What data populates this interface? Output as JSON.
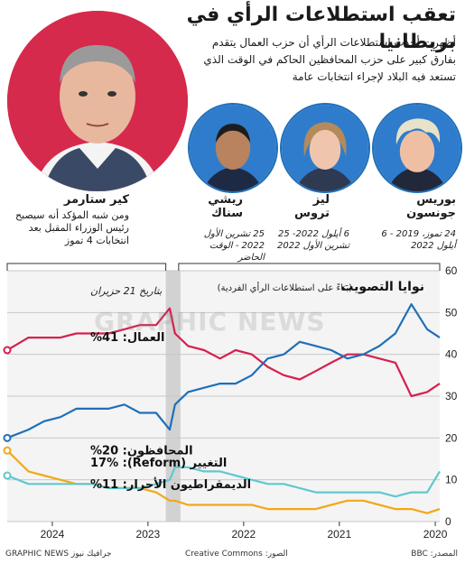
{
  "header": {
    "title": "تعقب استطلاعات الرأي في بريطانيا",
    "intro": "أظهرت أحدث استطلاعات الرأي أن حزب العمال يتقدم بفارق كبير على حزب المحافظين الحاكم في الوقت الذي تستعد فيه البلاد لإجراء انتخابات عامة"
  },
  "leaders": {
    "starmer": {
      "name": "كير ستارمر",
      "note": "ومن شبه المؤكد أنه سيصبح رئيس الوزراء المقبل بعد انتخابات 4 تموز"
    },
    "sunak": {
      "name": "ريشي سناك",
      "term": "25 تشرين الأول 2022 - الوقت الحاضر"
    },
    "truss": {
      "name": "ليز تروس",
      "term": "6 أيلول 2022- 25 تشرين الأول 2022"
    },
    "johnson": {
      "name": "بوريس جونسون",
      "term": "24 تموز، 2019 - 6 أيلول 2022"
    }
  },
  "chart_data": {
    "type": "line",
    "title": "نوايا التصويت",
    "subtitle": "(بناءً على استطلاعات الرأي الفردية)",
    "date_note": "بتاريخ 21 حزيران",
    "ylim": [
      0,
      60
    ],
    "y_ticks": [
      0,
      10,
      20,
      30,
      40,
      50,
      60
    ],
    "x_ticks": [
      "2020",
      "2021",
      "2022",
      "2023",
      "2024"
    ],
    "x_direction": "right-to-left",
    "xlim": [
      "2019-12-15",
      "2024-06-21"
    ],
    "grid": true,
    "series": [
      {
        "name": "العمال",
        "label": "العمال: 41%",
        "color": "#d6204f",
        "x": [
          "2019-12-15",
          "2020-02-01",
          "2020-04-01",
          "2020-06-01",
          "2020-08-01",
          "2020-10-01",
          "2020-12-01",
          "2021-02-01",
          "2021-04-01",
          "2021-06-01",
          "2021-08-01",
          "2021-10-01",
          "2021-12-01",
          "2022-02-01",
          "2022-04-01",
          "2022-06-01",
          "2022-08-01",
          "2022-09-20",
          "2022-10-10",
          "2022-12-01",
          "2023-02-01",
          "2023-04-01",
          "2023-06-01",
          "2023-08-01",
          "2023-10-01",
          "2023-12-01",
          "2024-02-01",
          "2024-04-01",
          "2024-06-21"
        ],
        "values": [
          33,
          31,
          30,
          38,
          39,
          40,
          40,
          38,
          36,
          34,
          35,
          37,
          40,
          41,
          39,
          41,
          42,
          45,
          51,
          47,
          47,
          46,
          45,
          45,
          45,
          44,
          44,
          44,
          41
        ]
      },
      {
        "name": "المحافظون",
        "label": "المحافظون: 20%",
        "color": "#1f6fb8",
        "x": [
          "2019-12-15",
          "2020-02-01",
          "2020-04-01",
          "2020-06-01",
          "2020-08-01",
          "2020-10-01",
          "2020-12-01",
          "2021-02-01",
          "2021-04-01",
          "2021-06-01",
          "2021-08-01",
          "2021-10-01",
          "2021-12-01",
          "2022-02-01",
          "2022-04-01",
          "2022-06-01",
          "2022-08-01",
          "2022-09-20",
          "2022-10-10",
          "2022-12-01",
          "2023-02-01",
          "2023-04-01",
          "2023-06-01",
          "2023-08-01",
          "2023-10-01",
          "2023-12-01",
          "2024-02-01",
          "2024-04-01",
          "2024-06-21"
        ],
        "values": [
          44,
          46,
          52,
          45,
          42,
          40,
          39,
          41,
          42,
          43,
          40,
          39,
          35,
          33,
          33,
          32,
          31,
          28,
          22,
          26,
          26,
          28,
          27,
          27,
          27,
          25,
          24,
          22,
          20
        ]
      },
      {
        "name": "التغيير (Reform)",
        "label": "التغيير (Reform): 17%",
        "color": "#f2a818",
        "x": [
          "2019-12-15",
          "2020-02-01",
          "2020-04-01",
          "2020-06-01",
          "2020-08-01",
          "2020-10-01",
          "2020-12-01",
          "2021-02-01",
          "2021-04-01",
          "2021-06-01",
          "2021-08-01",
          "2021-10-01",
          "2021-12-01",
          "2022-02-01",
          "2022-04-01",
          "2022-06-01",
          "2022-08-01",
          "2022-09-20",
          "2022-10-10",
          "2022-12-01",
          "2023-02-01",
          "2023-04-01",
          "2023-06-01",
          "2023-08-01",
          "2023-10-01",
          "2023-12-01",
          "2024-02-01",
          "2024-04-01",
          "2024-06-21"
        ],
        "values": [
          3,
          2,
          3,
          3,
          4,
          5,
          5,
          4,
          3,
          3,
          3,
          3,
          4,
          4,
          4,
          4,
          4,
          5,
          5,
          7,
          8,
          8,
          8,
          9,
          9,
          10,
          11,
          12,
          17
        ]
      },
      {
        "name": "الديمقراطيون الأحرار",
        "label": "الديمقراطيون الأحرار: 11%",
        "color": "#5fc8d0",
        "x": [
          "2019-12-15",
          "2020-02-01",
          "2020-04-01",
          "2020-06-01",
          "2020-08-01",
          "2020-10-01",
          "2020-12-01",
          "2021-02-01",
          "2021-04-01",
          "2021-06-01",
          "2021-08-01",
          "2021-10-01",
          "2021-12-01",
          "2022-02-01",
          "2022-04-01",
          "2022-06-01",
          "2022-08-01",
          "2022-09-20",
          "2022-10-10",
          "2022-12-01",
          "2023-02-01",
          "2023-04-01",
          "2023-06-01",
          "2023-08-01",
          "2023-10-01",
          "2023-12-01",
          "2024-02-01",
          "2024-04-01",
          "2024-06-21"
        ],
        "values": [
          12,
          7,
          7,
          6,
          7,
          7,
          7,
          7,
          7,
          8,
          9,
          9,
          10,
          11,
          12,
          12,
          13,
          13,
          10,
          9,
          8,
          8,
          8,
          9,
          9,
          9,
          9,
          9,
          11
        ]
      }
    ]
  },
  "footer": {
    "source": "المصدر: BBC",
    "photos": "الصور: Creative Commons",
    "credit": "جرافيك نيوز GRAPHIC NEWS"
  }
}
